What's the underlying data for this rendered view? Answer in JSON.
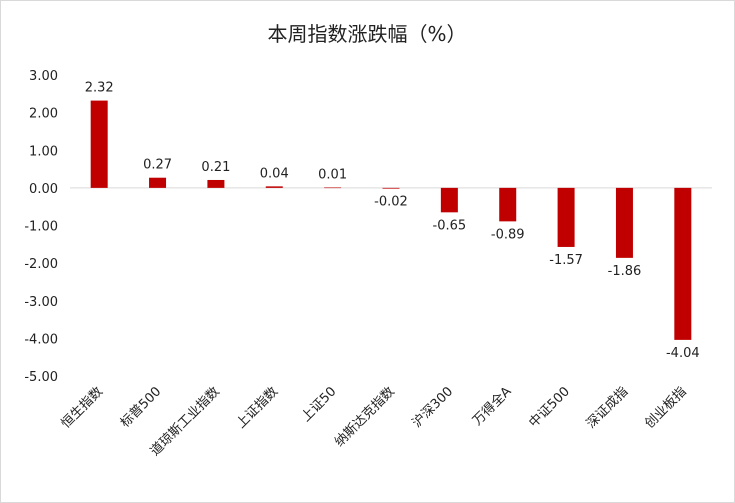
{
  "chart_data": {
    "type": "bar",
    "title": "本周指数涨跌幅（%）",
    "categories": [
      "恒生指数",
      "标普500",
      "道琼斯工业指数",
      "上证指数",
      "上证50",
      "纳斯达克指数",
      "沪深300",
      "万得全A",
      "中证500",
      "深证成指",
      "创业板指"
    ],
    "values": [
      2.32,
      0.27,
      0.21,
      0.04,
      0.01,
      -0.02,
      -0.65,
      -0.89,
      -1.57,
      -1.86,
      -4.04
    ],
    "value_labels": [
      "2.32",
      "0.27",
      "0.21",
      "0.04",
      "0.01",
      "-0.02",
      "-0.65",
      "-0.89",
      "-1.57",
      "-1.86",
      "-4.04"
    ],
    "ylim": [
      -5,
      3
    ],
    "yticks": [
      "3.00",
      "2.00",
      "1.00",
      "0.00",
      "-1.00",
      "-2.00",
      "-3.00",
      "-4.00",
      "-5.00"
    ],
    "ytick_values": [
      3,
      2,
      1,
      0,
      -1,
      -2,
      -3,
      -4,
      -5
    ],
    "bar_color": "#C00000",
    "axis_color": "#d9d9d9",
    "grid": false,
    "legend": "none"
  }
}
